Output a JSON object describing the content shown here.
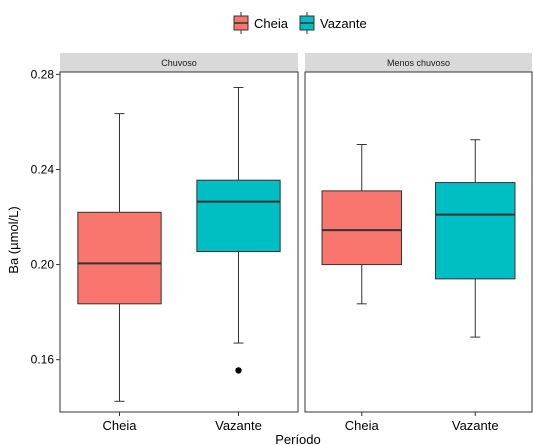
{
  "chart_data": {
    "type": "boxplot",
    "title": "",
    "xlabel": "Período",
    "ylabel": "Ba (µmol/L)",
    "ylim": [
      0.138,
      0.281
    ],
    "yticks": [
      0.16,
      0.2,
      0.24,
      0.28
    ],
    "ytick_labels": [
      "0.16",
      "0.20",
      "0.24",
      "0.28"
    ],
    "grid": false,
    "legend": {
      "position": "top",
      "entries": [
        {
          "name": "Cheia",
          "color": "#F8766D"
        },
        {
          "name": "Vazante",
          "color": "#00BFC4"
        }
      ]
    },
    "facets": [
      {
        "label": "Chuvoso",
        "categories": [
          "Cheia",
          "Vazante"
        ],
        "boxes": [
          {
            "group": "Cheia",
            "min": 0.1425,
            "q1": 0.1835,
            "median": 0.2005,
            "q3": 0.222,
            "max": 0.2635,
            "outliers": []
          },
          {
            "group": "Vazante",
            "min": 0.167,
            "q1": 0.2055,
            "median": 0.2265,
            "q3": 0.2355,
            "max": 0.2745,
            "outliers": [
              0.1555
            ]
          }
        ]
      },
      {
        "label": "Menos chuvoso",
        "categories": [
          "Cheia",
          "Vazante"
        ],
        "boxes": [
          {
            "group": "Cheia",
            "min": 0.1835,
            "q1": 0.2,
            "median": 0.2145,
            "q3": 0.231,
            "max": 0.2505,
            "outliers": []
          },
          {
            "group": "Vazante",
            "min": 0.1695,
            "q1": 0.194,
            "median": 0.221,
            "q3": 0.2345,
            "max": 0.2525,
            "outliers": []
          }
        ]
      }
    ]
  }
}
